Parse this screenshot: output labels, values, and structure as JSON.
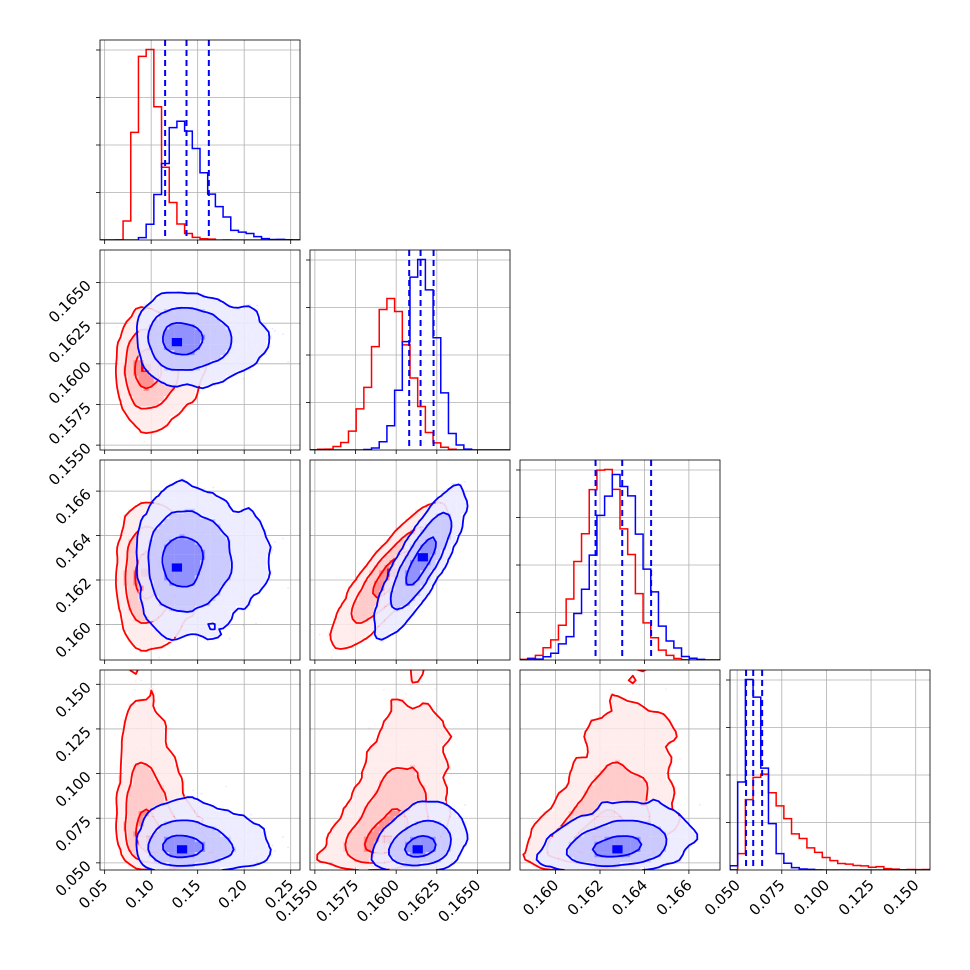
{
  "chart_data": {
    "type": "corner",
    "grid": true,
    "parameters": [
      {
        "range": [
          0.045,
          0.26
        ],
        "ticks": [
          0.05,
          0.1,
          0.15,
          0.2,
          0.25
        ],
        "tick_labels": [
          "0.05",
          "0.10",
          "0.15",
          "0.20",
          "0.25"
        ]
      },
      {
        "range": [
          0.1547,
          0.167
        ],
        "ticks": [
          0.155,
          0.1575,
          0.16,
          0.1625,
          0.165
        ],
        "tick_labels": [
          "0.1550",
          "0.1575",
          "0.1600",
          "0.1625",
          "0.1650"
        ]
      },
      {
        "range": [
          0.1584,
          0.1674
        ],
        "ticks": [
          0.16,
          0.162,
          0.164,
          0.166
        ],
        "tick_labels": [
          "0.160",
          "0.162",
          "0.164",
          "0.166"
        ]
      },
      {
        "range": [
          0.046,
          0.158
        ],
        "ticks": [
          0.05,
          0.075,
          0.1,
          0.125,
          0.15
        ],
        "tick_labels": [
          "0.050",
          "0.075",
          "0.100",
          "0.125",
          "0.150"
        ]
      }
    ],
    "series": [
      {
        "color": "#ff0000",
        "mean": [
          0.098,
          0.1597,
          0.16225,
          0.0695
        ],
        "std": [
          0.013,
          0.00115,
          0.00105,
          0.013
        ],
        "corr": [
          [
            1,
            0,
            0.05,
            -0.3
          ],
          [
            0,
            1,
            0.9,
            0.45
          ],
          [
            0.05,
            0.9,
            1,
            0.45
          ],
          [
            -0.3,
            0.45,
            0.45,
            1
          ]
        ],
        "skew": [
          0.7,
          0,
          0,
          1.5
        ]
      },
      {
        "color": "#0000ff",
        "mean": [
          0.137,
          0.1615,
          0.1628,
          0.0595
        ],
        "std": [
          0.022,
          0.0009,
          0.0011,
          0.0055
        ],
        "corr": [
          [
            1,
            0,
            0.05,
            0
          ],
          [
            0,
            1,
            0.9,
            0.3
          ],
          [
            0.05,
            0.9,
            1,
            0.3
          ],
          [
            0,
            0.3,
            0.3,
            1
          ]
        ],
        "skew": [
          0.7,
          0,
          0,
          0.8
        ]
      }
    ],
    "quantile_lines": {
      "color": "#0000ff",
      "values": [
        [
          0.115,
          0.138,
          0.162
        ],
        [
          0.1608,
          0.1615,
          0.1623
        ],
        [
          0.1618,
          0.163,
          0.1643
        ],
        [
          0.055,
          0.059,
          0.064
        ]
      ]
    }
  }
}
